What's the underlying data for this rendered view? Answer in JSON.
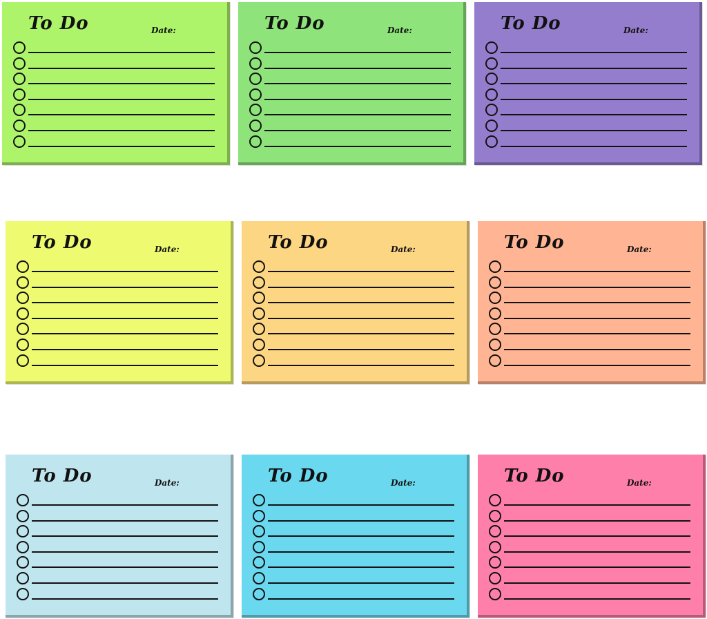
{
  "notes": [
    {
      "title": "To Do",
      "date_label": "Date:",
      "color": "#adf46b"
    },
    {
      "title": "To Do",
      "date_label": "Date:",
      "color": "#8ee37a"
    },
    {
      "title": "To Do",
      "date_label": "Date:",
      "color": "#947dcc"
    },
    {
      "title": "To Do",
      "date_label": "Date:",
      "color": "#eefb71"
    },
    {
      "title": "To Do",
      "date_label": "Date:",
      "color": "#fdd683"
    },
    {
      "title": "To Do",
      "date_label": "Date:",
      "color": "#ffb593"
    },
    {
      "title": "To Do",
      "date_label": "Date:",
      "color": "#bfe5ef"
    },
    {
      "title": "To Do",
      "date_label": "Date:",
      "color": "#6ad8ee"
    },
    {
      "title": "To Do",
      "date_label": "Date:",
      "color": "#ff7fab"
    }
  ],
  "rows_per_note": 7
}
